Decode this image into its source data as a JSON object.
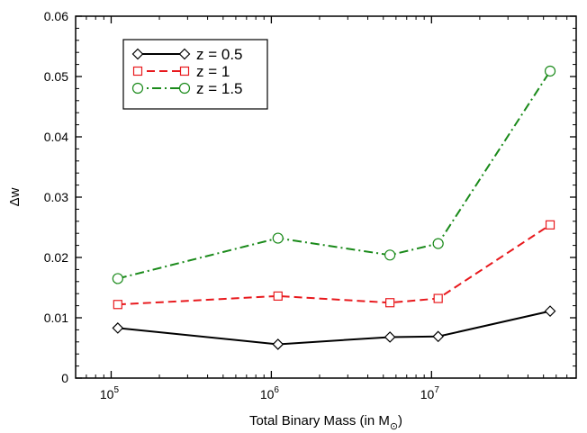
{
  "chart_data": {
    "type": "line",
    "x_scale": "log",
    "xlim": [
      60000,
      80000000
    ],
    "ylim": [
      0,
      0.06
    ],
    "x_ticks": [
      {
        "value": 100000,
        "base": "10",
        "exp": "5"
      },
      {
        "value": 1000000,
        "base": "10",
        "exp": "6"
      },
      {
        "value": 10000000,
        "base": "10",
        "exp": "7"
      }
    ],
    "y_ticks": [
      {
        "value": 0,
        "label": "0"
      },
      {
        "value": 0.01,
        "label": "0.01"
      },
      {
        "value": 0.02,
        "label": "0.02"
      },
      {
        "value": 0.03,
        "label": "0.03"
      },
      {
        "value": 0.04,
        "label": "0.04"
      },
      {
        "value": 0.05,
        "label": "0.05"
      },
      {
        "value": 0.06,
        "label": "0.06"
      }
    ],
    "xlabel_main": "Total Binary Mass (in M",
    "xlabel_sub": "⊙",
    "xlabel_end": ")",
    "ylabel": "Δw",
    "grid": false,
    "legend_position": "top-left",
    "x": [
      110000,
      1100000,
      5500000,
      11000000,
      55000000
    ],
    "series": [
      {
        "name": "z = 0.5",
        "values": [
          0.0083,
          0.0056,
          0.0068,
          0.0069,
          0.0111
        ],
        "color": "#000000",
        "marker": "diamond",
        "dash": "solid"
      },
      {
        "name": "z = 1",
        "values": [
          0.0122,
          0.0136,
          0.0125,
          0.0132,
          0.0254
        ],
        "color": "#e8191d",
        "marker": "square",
        "dash": "dashed"
      },
      {
        "name": "z = 1.5",
        "values": [
          0.0165,
          0.0232,
          0.0204,
          0.0223,
          0.0509
        ],
        "color": "#1a8a1a",
        "marker": "circle",
        "dash": "dashdot"
      }
    ]
  }
}
